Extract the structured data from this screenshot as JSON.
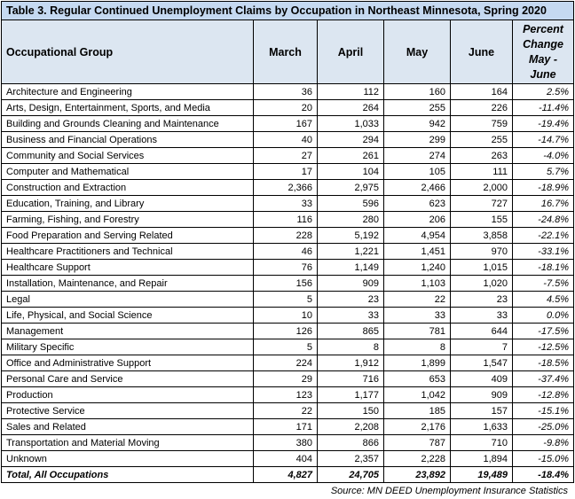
{
  "title": "Table 3. Regular Continued Unemployment Claims by Occupation in Northeast Minnesota, Spring 2020",
  "table": {
    "columns": [
      "Occupational Group",
      "March",
      "April",
      "May",
      "June",
      "Percent Change May - June"
    ],
    "rows": [
      [
        "Architecture and Engineering",
        "36",
        "112",
        "160",
        "164",
        "2.5%"
      ],
      [
        "Arts, Design, Entertainment, Sports, and Media",
        "20",
        "264",
        "255",
        "226",
        "-11.4%"
      ],
      [
        "Building and Grounds Cleaning and Maintenance",
        "167",
        "1,033",
        "942",
        "759",
        "-19.4%"
      ],
      [
        "Business and Financial Operations",
        "40",
        "294",
        "299",
        "255",
        "-14.7%"
      ],
      [
        "Community and Social Services",
        "27",
        "261",
        "274",
        "263",
        "-4.0%"
      ],
      [
        "Computer and Mathematical",
        "17",
        "104",
        "105",
        "111",
        "5.7%"
      ],
      [
        "Construction and Extraction",
        "2,366",
        "2,975",
        "2,466",
        "2,000",
        "-18.9%"
      ],
      [
        "Education, Training, and Library",
        "33",
        "596",
        "623",
        "727",
        "16.7%"
      ],
      [
        "Farming, Fishing, and Forestry",
        "116",
        "280",
        "206",
        "155",
        "-24.8%"
      ],
      [
        "Food Preparation and Serving Related",
        "228",
        "5,192",
        "4,954",
        "3,858",
        "-22.1%"
      ],
      [
        "Healthcare Practitioners and Technical",
        "46",
        "1,221",
        "1,451",
        "970",
        "-33.1%"
      ],
      [
        "Healthcare Support",
        "76",
        "1,149",
        "1,240",
        "1,015",
        "-18.1%"
      ],
      [
        "Installation, Maintenance, and Repair",
        "156",
        "909",
        "1,103",
        "1,020",
        "-7.5%"
      ],
      [
        "Legal",
        "5",
        "23",
        "22",
        "23",
        "4.5%"
      ],
      [
        "Life, Physical, and Social Science",
        "10",
        "33",
        "33",
        "33",
        "0.0%"
      ],
      [
        "Management",
        "126",
        "865",
        "781",
        "644",
        "-17.5%"
      ],
      [
        "Military Specific",
        "5",
        "8",
        "8",
        "7",
        "-12.5%"
      ],
      [
        "Office and Administrative Support",
        "224",
        "1,912",
        "1,899",
        "1,547",
        "-18.5%"
      ],
      [
        "Personal Care and Service",
        "29",
        "716",
        "653",
        "409",
        "-37.4%"
      ],
      [
        "Production",
        "123",
        "1,177",
        "1,042",
        "909",
        "-12.8%"
      ],
      [
        "Protective Service",
        "22",
        "150",
        "185",
        "157",
        "-15.1%"
      ],
      [
        "Sales and Related",
        "171",
        "2,208",
        "2,176",
        "1,633",
        "-25.0%"
      ],
      [
        "Transportation and Material Moving",
        "380",
        "866",
        "787",
        "710",
        "-9.8%"
      ],
      [
        "Unknown",
        "404",
        "2,357",
        "2,228",
        "1,894",
        "-15.0%"
      ]
    ],
    "total": [
      "Total, All Occupations",
      "4,827",
      "24,705",
      "23,892",
      "19,489",
      "-18.4%"
    ]
  },
  "source": "Source: MN DEED Unemployment Insurance Statistics"
}
